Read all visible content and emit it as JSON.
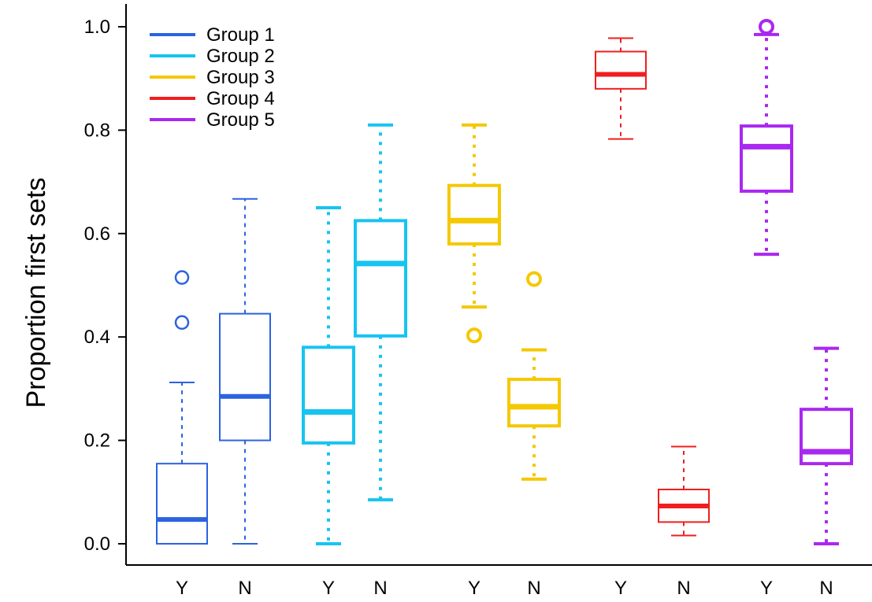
{
  "chart_data": {
    "type": "boxplot",
    "ylabel": "Proportion first sets",
    "ylim": [
      0,
      1.0
    ],
    "yticks": [
      "0.0",
      "0.2",
      "0.4",
      "0.6",
      "0.8",
      "1.0"
    ],
    "legend_position": "top-left",
    "series": [
      {
        "name": "Group 1",
        "color": "#2b63e0",
        "style": "thin-dashed",
        "boxes": [
          {
            "label": "Y",
            "low": 0.0,
            "q1": 0.0,
            "median": 0.047,
            "q3": 0.155,
            "high": 0.312,
            "outliers": [
              0.428,
              0.515
            ]
          },
          {
            "label": "N",
            "low": 0.0,
            "q1": 0.2,
            "median": 0.285,
            "q3": 0.445,
            "high": 0.667,
            "outliers": []
          }
        ]
      },
      {
        "name": "Group 2",
        "color": "#17c4f0",
        "style": "thick-dotted",
        "boxes": [
          {
            "label": "Y",
            "low": 0.0,
            "q1": 0.195,
            "median": 0.255,
            "q3": 0.38,
            "high": 0.65,
            "outliers": []
          },
          {
            "label": "N",
            "low": 0.085,
            "q1": 0.402,
            "median": 0.542,
            "q3": 0.625,
            "high": 0.81,
            "outliers": []
          }
        ]
      },
      {
        "name": "Group 3",
        "color": "#f5c800",
        "style": "thick-dotted",
        "boxes": [
          {
            "label": "Y",
            "low": 0.458,
            "q1": 0.58,
            "median": 0.625,
            "q3": 0.693,
            "high": 0.81,
            "outliers": [
              0.403
            ]
          },
          {
            "label": "N",
            "low": 0.125,
            "q1": 0.228,
            "median": 0.265,
            "q3": 0.318,
            "high": 0.375,
            "outliers": [
              0.512
            ]
          }
        ]
      },
      {
        "name": "Group 4",
        "color": "#f01e1e",
        "style": "thin-dashed",
        "boxes": [
          {
            "label": "Y",
            "low": 0.783,
            "q1": 0.88,
            "median": 0.908,
            "q3": 0.952,
            "high": 0.978,
            "outliers": []
          },
          {
            "label": "N",
            "low": 0.016,
            "q1": 0.042,
            "median": 0.073,
            "q3": 0.105,
            "high": 0.188,
            "outliers": []
          }
        ]
      },
      {
        "name": "Group 5",
        "color": "#a928f0",
        "style": "thick-dotted",
        "boxes": [
          {
            "label": "Y",
            "low": 0.56,
            "q1": 0.682,
            "median": 0.768,
            "q3": 0.808,
            "high": 0.985,
            "outliers": [
              1.0
            ]
          },
          {
            "label": "N",
            "low": 0.0,
            "q1": 0.155,
            "median": 0.178,
            "q3": 0.26,
            "high": 0.378,
            "outliers": []
          }
        ]
      }
    ]
  }
}
